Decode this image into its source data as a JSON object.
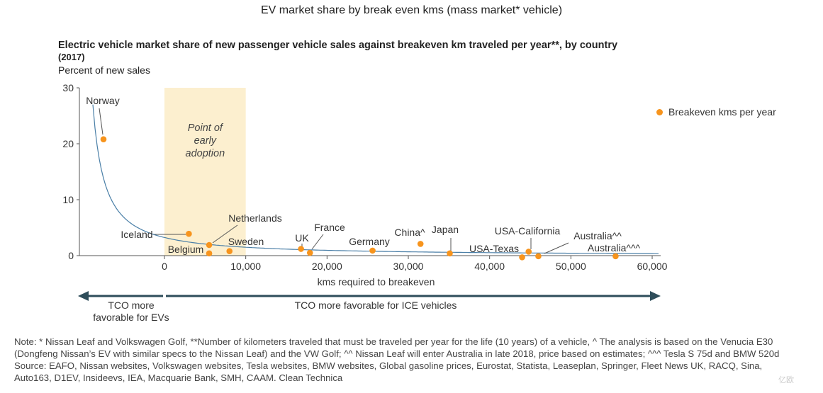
{
  "page_title": "EV market share by break even kms (mass market* vehicle)",
  "chart_data": {
    "type": "scatter",
    "title": "Electric vehicle market share of new passenger vehicle sales against breakeven km traveled per year**, by country",
    "title_year": "(2017)",
    "ylabel": "Percent of new sales",
    "xlabel": "kms required to breakeven",
    "xlim": [
      -10000,
      60000
    ],
    "ylim": [
      0,
      30
    ],
    "x_ticks": [
      0,
      10000,
      20000,
      30000,
      40000,
      50000,
      60000
    ],
    "x_tick_labels": [
      "0",
      "10,000",
      "20,000",
      "30,000",
      "40,000",
      "50,000",
      "60,000"
    ],
    "y_ticks": [
      0,
      10,
      20,
      30
    ],
    "y_tick_labels": [
      "0",
      "10",
      "20",
      "30"
    ],
    "legend": "Breakeven kms per year",
    "series": [
      {
        "name": "Breakeven kms per year",
        "color": "#F7941D",
        "points": [
          {
            "label": "Norway",
            "x": -7500,
            "y": 20.8
          },
          {
            "label": "Iceland",
            "x": 3000,
            "y": 3.9
          },
          {
            "label": "Netherlands",
            "x": 5500,
            "y": 1.9
          },
          {
            "label": "Belgium",
            "x": 5500,
            "y": 0.4
          },
          {
            "label": "Sweden",
            "x": 8000,
            "y": 0.8
          },
          {
            "label": "UK",
            "x": 16800,
            "y": 1.2
          },
          {
            "label": "France",
            "x": 17900,
            "y": 0.5
          },
          {
            "label": "Germany",
            "x": 25600,
            "y": 0.9
          },
          {
            "label": "China^",
            "x": 31500,
            "y": 2.1
          },
          {
            "label": "Japan",
            "x": 35100,
            "y": 0.4
          },
          {
            "label": "USA-Texas",
            "x": 44000,
            "y": -0.3
          },
          {
            "label": "USA-California",
            "x": 44800,
            "y": 0.7
          },
          {
            "label": "Australia^^",
            "x": 46000,
            "y": -0.1
          },
          {
            "label": "Australia^^^",
            "x": 55500,
            "y": -0.1
          }
        ]
      }
    ],
    "trend_line": "fitted decay curve",
    "highlight_region": {
      "x_range": [
        0,
        10000
      ],
      "label": [
        "Point of",
        "early",
        "adoption"
      ]
    }
  },
  "arrows": {
    "left_label_line1": "TCO more",
    "left_label_line2": "favorable for EVs",
    "right_label": "TCO more favorable for ICE vehicles"
  },
  "notes": [
    "Note:   * Nissan Leaf and Volkswagen Golf, **Number of kilometers traveled that must be traveled per year for the life (10 years) of a vehicle, ^ The analysis is based on the Venucia E30",
    "(Dongfeng Nissan’s EV with similar specs to the Nissan Leaf) and the VW Golf; ^^ Nissan Leaf will enter Australia in late 2018, price based on estimates; ^^^ Tesla S 75d and BMW 520d",
    "Source: EAFO, Nissan websites, Volkswagen websites, Tesla websites, BMW websites, Global gasoline prices, Eurostat, Statista, Leaseplan, Springer, Fleet News UK, RACQ, Sina,",
    "Auto163, D1EV, Insideevs, IEA, Macquarie Bank, SMH, CAAM. Clean Technica"
  ],
  "watermark": "亿欧",
  "colors": {
    "point": "#F7941D",
    "curve": "#4A7FA7",
    "highlight": "#FCEFCF",
    "arrow": "#2E4D5A"
  }
}
